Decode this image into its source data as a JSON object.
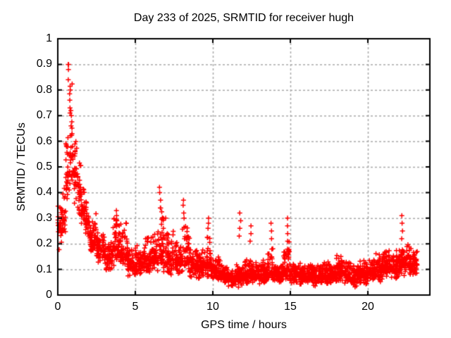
{
  "chart_data": {
    "type": "scatter",
    "title": "Day 233 of 2025, SRMTID for receiver hugh",
    "xlabel": "GPS time / hours",
    "ylabel": "SRMTID / TECUs",
    "xlim": [
      0,
      24
    ],
    "ylim": [
      0,
      1
    ],
    "xticks": [
      0,
      5,
      10,
      15,
      20
    ],
    "xtick_labels": [
      "0",
      "5",
      "10",
      "15",
      "20"
    ],
    "yticks": [
      0,
      0.1,
      0.2,
      0.3,
      0.4,
      0.5,
      0.6,
      0.7,
      0.8,
      0.9,
      1
    ],
    "ytick_labels": [
      "0",
      "0.1",
      "0.2",
      "0.3",
      "0.4",
      "0.5",
      "0.6",
      "0.7",
      "0.8",
      "0.9",
      "1"
    ],
    "grid": {
      "show": true,
      "color": "#a9a9a9",
      "dash": [
        3,
        3
      ]
    },
    "marker": {
      "shape": "plus",
      "color": "#ff0000",
      "size": 7
    },
    "axis_color": "#000000",
    "background": "#ffffff",
    "legend": "none",
    "seed": 233,
    "envelope_bins": [
      [
        0.0,
        0.25,
        0.17,
        0.27,
        0.4,
        27
      ],
      [
        0.25,
        0.5,
        0.2,
        0.3,
        0.47,
        27
      ],
      [
        0.5,
        0.75,
        0.33,
        0.48,
        0.7,
        27
      ],
      [
        0.75,
        1.0,
        0.4,
        0.55,
        0.88,
        27
      ],
      [
        1.0,
        1.25,
        0.35,
        0.46,
        0.62,
        27
      ],
      [
        1.25,
        1.5,
        0.3,
        0.4,
        0.55,
        27
      ],
      [
        1.5,
        1.75,
        0.26,
        0.34,
        0.46,
        27
      ],
      [
        1.75,
        2.0,
        0.22,
        0.29,
        0.38,
        27
      ],
      [
        2.0,
        2.5,
        0.15,
        0.22,
        0.32,
        55
      ],
      [
        2.5,
        3.0,
        0.12,
        0.18,
        0.26,
        55
      ],
      [
        3.0,
        3.5,
        0.08,
        0.14,
        0.22,
        55
      ],
      [
        3.5,
        4.0,
        0.1,
        0.18,
        0.33,
        55
      ],
      [
        4.0,
        4.5,
        0.09,
        0.16,
        0.3,
        55
      ],
      [
        4.5,
        5.0,
        0.07,
        0.12,
        0.19,
        55
      ],
      [
        5.0,
        5.5,
        0.07,
        0.12,
        0.2,
        55
      ],
      [
        5.5,
        6.0,
        0.08,
        0.14,
        0.25,
        55
      ],
      [
        6.0,
        6.5,
        0.08,
        0.15,
        0.28,
        55
      ],
      [
        6.5,
        7.0,
        0.08,
        0.16,
        0.35,
        55
      ],
      [
        7.0,
        7.5,
        0.07,
        0.14,
        0.26,
        55
      ],
      [
        7.5,
        8.0,
        0.07,
        0.13,
        0.22,
        55
      ],
      [
        8.0,
        8.5,
        0.08,
        0.15,
        0.3,
        55
      ],
      [
        8.5,
        9.0,
        0.06,
        0.12,
        0.2,
        55
      ],
      [
        9.0,
        9.5,
        0.06,
        0.11,
        0.18,
        55
      ],
      [
        9.5,
        10.0,
        0.06,
        0.12,
        0.24,
        55
      ],
      [
        10.0,
        10.5,
        0.05,
        0.09,
        0.15,
        55
      ],
      [
        10.5,
        11.0,
        0.04,
        0.08,
        0.13,
        55
      ],
      [
        11.0,
        11.5,
        0.03,
        0.06,
        0.1,
        55
      ],
      [
        11.5,
        12.0,
        0.03,
        0.07,
        0.12,
        55
      ],
      [
        12.0,
        12.5,
        0.04,
        0.08,
        0.15,
        55
      ],
      [
        12.5,
        13.0,
        0.04,
        0.08,
        0.14,
        55
      ],
      [
        13.0,
        13.5,
        0.04,
        0.08,
        0.14,
        55
      ],
      [
        13.5,
        14.0,
        0.05,
        0.09,
        0.2,
        55
      ],
      [
        14.0,
        14.5,
        0.04,
        0.08,
        0.14,
        55
      ],
      [
        14.5,
        15.0,
        0.05,
        0.1,
        0.22,
        55
      ],
      [
        15.0,
        15.5,
        0.04,
        0.08,
        0.13,
        55
      ],
      [
        15.5,
        16.0,
        0.04,
        0.08,
        0.13,
        55
      ],
      [
        16.0,
        16.5,
        0.04,
        0.08,
        0.14,
        55
      ],
      [
        16.5,
        17.0,
        0.03,
        0.07,
        0.12,
        55
      ],
      [
        17.0,
        17.5,
        0.04,
        0.08,
        0.14,
        55
      ],
      [
        17.5,
        18.0,
        0.04,
        0.08,
        0.15,
        55
      ],
      [
        18.0,
        18.5,
        0.05,
        0.09,
        0.17,
        55
      ],
      [
        18.5,
        19.0,
        0.04,
        0.08,
        0.14,
        55
      ],
      [
        19.0,
        19.5,
        0.03,
        0.07,
        0.12,
        55
      ],
      [
        19.5,
        20.0,
        0.04,
        0.08,
        0.14,
        55
      ],
      [
        20.0,
        20.5,
        0.05,
        0.09,
        0.15,
        55
      ],
      [
        20.5,
        21.0,
        0.05,
        0.1,
        0.17,
        55
      ],
      [
        21.0,
        21.5,
        0.06,
        0.11,
        0.18,
        55
      ],
      [
        21.5,
        22.0,
        0.06,
        0.11,
        0.18,
        55
      ],
      [
        22.0,
        22.5,
        0.07,
        0.13,
        0.2,
        55
      ],
      [
        22.5,
        23.0,
        0.07,
        0.13,
        0.2,
        55
      ],
      [
        23.0,
        23.2,
        0.08,
        0.13,
        0.19,
        22
      ]
    ],
    "spike_columns": [
      [
        0.7,
        [
          0.9,
          0.9,
          0.88,
          0.84
        ]
      ],
      [
        0.78,
        [
          0.8,
          0.76,
          0.73
        ]
      ],
      [
        0.84,
        [
          0.72,
          0.7,
          0.66
        ]
      ],
      [
        3.8,
        [
          0.33,
          0.31,
          0.29
        ]
      ],
      [
        6.6,
        [
          0.42,
          0.4,
          0.37,
          0.34
        ]
      ],
      [
        8.1,
        [
          0.37,
          0.35,
          0.32,
          0.3
        ]
      ],
      [
        9.7,
        [
          0.3,
          0.28,
          0.26
        ]
      ],
      [
        11.75,
        [
          0.32,
          0.29,
          0.26,
          0.23
        ]
      ],
      [
        12.45,
        [
          0.27,
          0.24,
          0.21
        ]
      ],
      [
        13.8,
        [
          0.28,
          0.25,
          0.22
        ]
      ],
      [
        14.85,
        [
          0.3,
          0.27,
          0.24,
          0.21
        ]
      ],
      [
        22.2,
        [
          0.31,
          0.28,
          0.25,
          0.22
        ]
      ]
    ]
  }
}
